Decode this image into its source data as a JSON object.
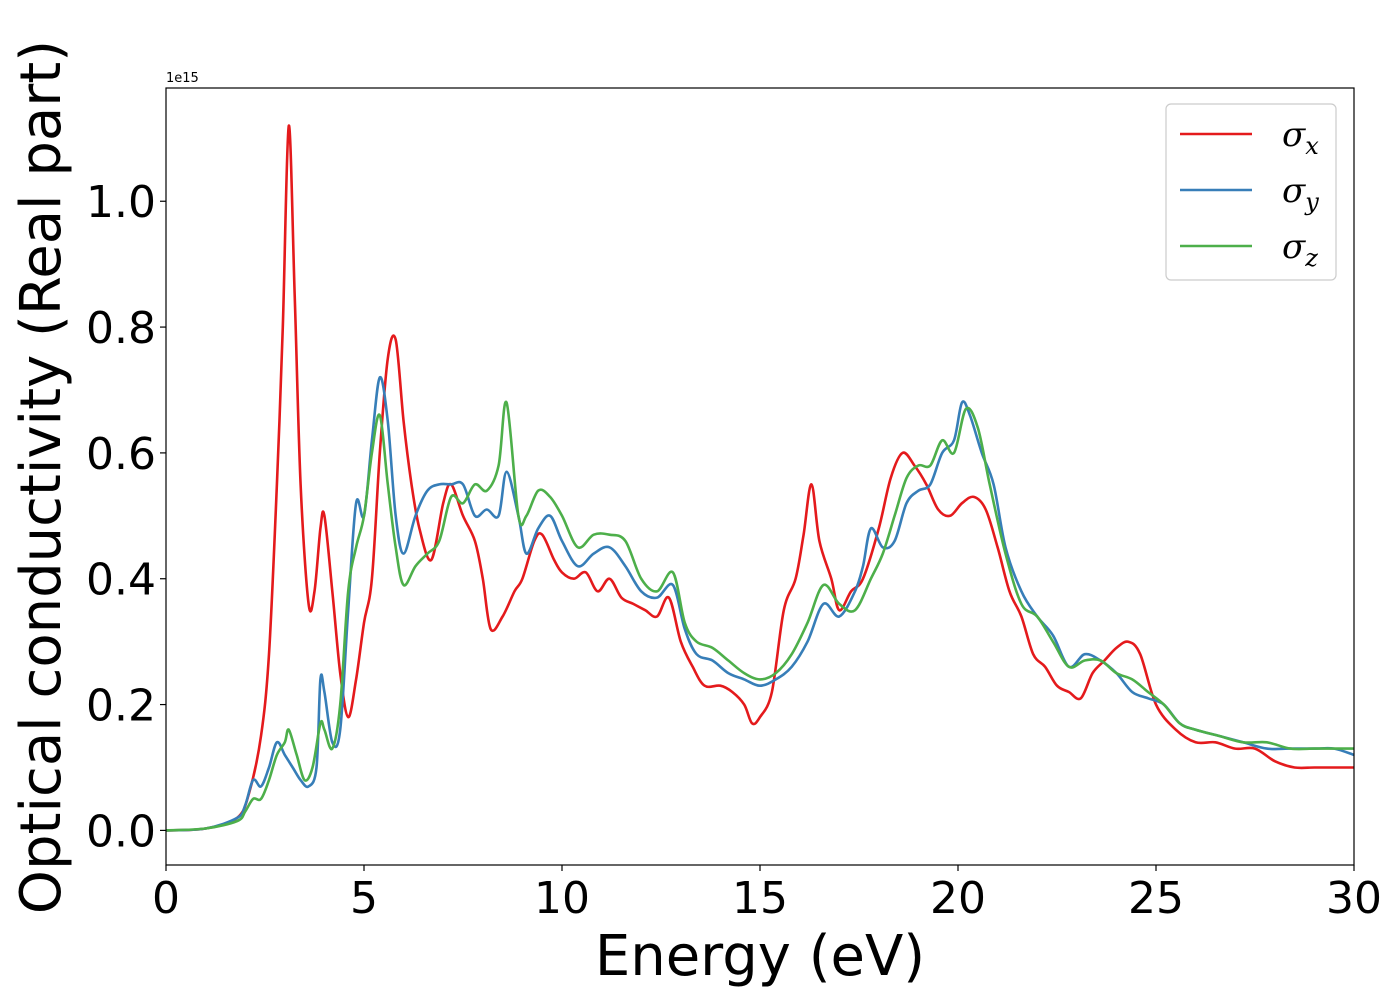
{
  "chart_data": {
    "type": "line",
    "xlabel": "Energy (eV)",
    "ylabel": "Optical conductivity (Real part)",
    "offset_text": "1e15",
    "xlim": [
      0,
      30
    ],
    "ylim": [
      -0.055,
      1.18
    ],
    "x_ticks": [
      "0",
      "5",
      "10",
      "15",
      "20",
      "25",
      "30"
    ],
    "y_ticks": [
      "0.0",
      "0.2",
      "0.4",
      "0.6",
      "0.8",
      "1.0"
    ],
    "legend_position": "top-right",
    "series": [
      {
        "name": "σx",
        "symbol": "σ",
        "subscript": "x",
        "color": "#e41a1c",
        "x": [
          0,
          1,
          1.8,
          2.1,
          2.4,
          2.6,
          2.8,
          2.95,
          3.1,
          3.25,
          3.4,
          3.6,
          3.75,
          3.9,
          4.0,
          4.2,
          4.4,
          4.6,
          4.8,
          5.0,
          5.2,
          5.4,
          5.6,
          5.8,
          6.0,
          6.2,
          6.4,
          6.7,
          7.0,
          7.2,
          7.5,
          7.8,
          8.0,
          8.2,
          8.5,
          8.8,
          9.0,
          9.3,
          9.5,
          9.8,
          10.0,
          10.3,
          10.6,
          10.9,
          11.2,
          11.5,
          11.8,
          12.1,
          12.4,
          12.7,
          13.0,
          13.3,
          13.6,
          14.0,
          14.3,
          14.6,
          14.8,
          15.0,
          15.3,
          15.6,
          15.9,
          16.1,
          16.3,
          16.5,
          16.8,
          17.0,
          17.3,
          17.6,
          18.0,
          18.3,
          18.6,
          18.9,
          19.2,
          19.5,
          19.8,
          20.1,
          20.4,
          20.7,
          21.0,
          21.3,
          21.6,
          21.9,
          22.2,
          22.5,
          22.8,
          23.1,
          23.4,
          23.7,
          24.0,
          24.3,
          24.6,
          25.0,
          25.5,
          26.0,
          26.5,
          27.0,
          27.5,
          28.0,
          28.5,
          29.0,
          29.5,
          30.0
        ],
        "y": [
          0.0,
          0.003,
          0.02,
          0.06,
          0.15,
          0.28,
          0.55,
          0.8,
          1.12,
          0.85,
          0.55,
          0.36,
          0.38,
          0.48,
          0.5,
          0.38,
          0.25,
          0.18,
          0.24,
          0.33,
          0.4,
          0.6,
          0.75,
          0.78,
          0.65,
          0.55,
          0.48,
          0.43,
          0.52,
          0.55,
          0.5,
          0.46,
          0.4,
          0.32,
          0.34,
          0.38,
          0.4,
          0.46,
          0.47,
          0.43,
          0.41,
          0.4,
          0.41,
          0.38,
          0.4,
          0.37,
          0.36,
          0.35,
          0.34,
          0.37,
          0.3,
          0.26,
          0.23,
          0.23,
          0.22,
          0.2,
          0.17,
          0.18,
          0.22,
          0.35,
          0.4,
          0.47,
          0.55,
          0.46,
          0.4,
          0.35,
          0.38,
          0.4,
          0.48,
          0.56,
          0.6,
          0.58,
          0.55,
          0.51,
          0.5,
          0.52,
          0.53,
          0.51,
          0.45,
          0.38,
          0.34,
          0.28,
          0.26,
          0.23,
          0.22,
          0.21,
          0.25,
          0.27,
          0.29,
          0.3,
          0.28,
          0.2,
          0.16,
          0.14,
          0.14,
          0.13,
          0.13,
          0.11,
          0.1,
          0.1,
          0.1,
          0.1
        ]
      },
      {
        "name": "σy",
        "symbol": "σ",
        "subscript": "y",
        "color": "#377eb8",
        "x": [
          0,
          1,
          1.8,
          2.0,
          2.2,
          2.4,
          2.6,
          2.8,
          3.0,
          3.2,
          3.4,
          3.6,
          3.8,
          3.9,
          4.0,
          4.2,
          4.4,
          4.6,
          4.8,
          5.0,
          5.2,
          5.4,
          5.6,
          5.8,
          6.0,
          6.3,
          6.6,
          6.9,
          7.2,
          7.5,
          7.8,
          8.1,
          8.4,
          8.6,
          8.9,
          9.1,
          9.4,
          9.7,
          10.0,
          10.4,
          10.8,
          11.2,
          11.6,
          12.0,
          12.4,
          12.8,
          13.1,
          13.4,
          13.8,
          14.2,
          14.6,
          15.0,
          15.4,
          15.8,
          16.2,
          16.6,
          17.0,
          17.4,
          17.6,
          17.8,
          18.1,
          18.4,
          18.7,
          19.0,
          19.3,
          19.6,
          19.9,
          20.1,
          20.3,
          20.6,
          20.9,
          21.2,
          21.6,
          22.0,
          22.4,
          22.8,
          23.2,
          23.6,
          24.0,
          24.4,
          24.8,
          25.2,
          25.6,
          26.0,
          26.6,
          27.2,
          27.8,
          28.4,
          29.0,
          29.5,
          30.0
        ],
        "y": [
          0.0,
          0.003,
          0.02,
          0.04,
          0.08,
          0.07,
          0.1,
          0.14,
          0.12,
          0.1,
          0.08,
          0.07,
          0.1,
          0.24,
          0.22,
          0.14,
          0.16,
          0.35,
          0.52,
          0.5,
          0.62,
          0.72,
          0.65,
          0.5,
          0.44,
          0.5,
          0.54,
          0.55,
          0.55,
          0.55,
          0.5,
          0.51,
          0.5,
          0.57,
          0.5,
          0.44,
          0.48,
          0.5,
          0.46,
          0.42,
          0.44,
          0.45,
          0.42,
          0.38,
          0.37,
          0.39,
          0.32,
          0.28,
          0.27,
          0.25,
          0.24,
          0.23,
          0.24,
          0.26,
          0.3,
          0.36,
          0.34,
          0.38,
          0.42,
          0.48,
          0.45,
          0.46,
          0.52,
          0.54,
          0.55,
          0.6,
          0.62,
          0.68,
          0.66,
          0.6,
          0.55,
          0.45,
          0.38,
          0.34,
          0.31,
          0.26,
          0.28,
          0.27,
          0.25,
          0.22,
          0.21,
          0.2,
          0.17,
          0.16,
          0.15,
          0.14,
          0.13,
          0.13,
          0.13,
          0.13,
          0.12
        ]
      },
      {
        "name": "σz",
        "symbol": "σ",
        "subscript": "z",
        "color": "#4daf4a",
        "x": [
          0,
          1,
          1.8,
          2.0,
          2.2,
          2.4,
          2.6,
          2.8,
          3.0,
          3.1,
          3.3,
          3.5,
          3.7,
          3.9,
          4.0,
          4.2,
          4.4,
          4.6,
          4.8,
          5.0,
          5.2,
          5.4,
          5.6,
          5.8,
          6.0,
          6.3,
          6.6,
          6.9,
          7.2,
          7.5,
          7.8,
          8.1,
          8.4,
          8.6,
          8.9,
          9.1,
          9.4,
          9.7,
          10.0,
          10.4,
          10.8,
          11.2,
          11.6,
          12.0,
          12.4,
          12.8,
          13.1,
          13.4,
          13.8,
          14.2,
          14.6,
          15.0,
          15.4,
          15.8,
          16.2,
          16.6,
          17.0,
          17.4,
          17.8,
          18.1,
          18.4,
          18.7,
          19.0,
          19.3,
          19.6,
          19.9,
          20.2,
          20.5,
          20.8,
          21.2,
          21.6,
          22.0,
          22.4,
          22.8,
          23.2,
          23.6,
          24.0,
          24.4,
          24.8,
          25.2,
          25.6,
          26.0,
          26.6,
          27.2,
          27.8,
          28.4,
          29.0,
          29.5,
          30.0
        ],
        "y": [
          0.0,
          0.003,
          0.015,
          0.03,
          0.05,
          0.05,
          0.08,
          0.12,
          0.14,
          0.16,
          0.12,
          0.08,
          0.1,
          0.17,
          0.16,
          0.13,
          0.2,
          0.38,
          0.45,
          0.5,
          0.6,
          0.66,
          0.55,
          0.45,
          0.39,
          0.42,
          0.44,
          0.46,
          0.53,
          0.52,
          0.55,
          0.54,
          0.58,
          0.68,
          0.5,
          0.5,
          0.54,
          0.53,
          0.5,
          0.45,
          0.47,
          0.47,
          0.46,
          0.4,
          0.38,
          0.41,
          0.33,
          0.3,
          0.29,
          0.27,
          0.25,
          0.24,
          0.25,
          0.28,
          0.33,
          0.39,
          0.36,
          0.35,
          0.4,
          0.44,
          0.5,
          0.56,
          0.58,
          0.58,
          0.62,
          0.6,
          0.67,
          0.64,
          0.55,
          0.44,
          0.36,
          0.34,
          0.3,
          0.26,
          0.27,
          0.27,
          0.25,
          0.24,
          0.22,
          0.2,
          0.17,
          0.16,
          0.15,
          0.14,
          0.14,
          0.13,
          0.13,
          0.13,
          0.13
        ]
      }
    ]
  }
}
